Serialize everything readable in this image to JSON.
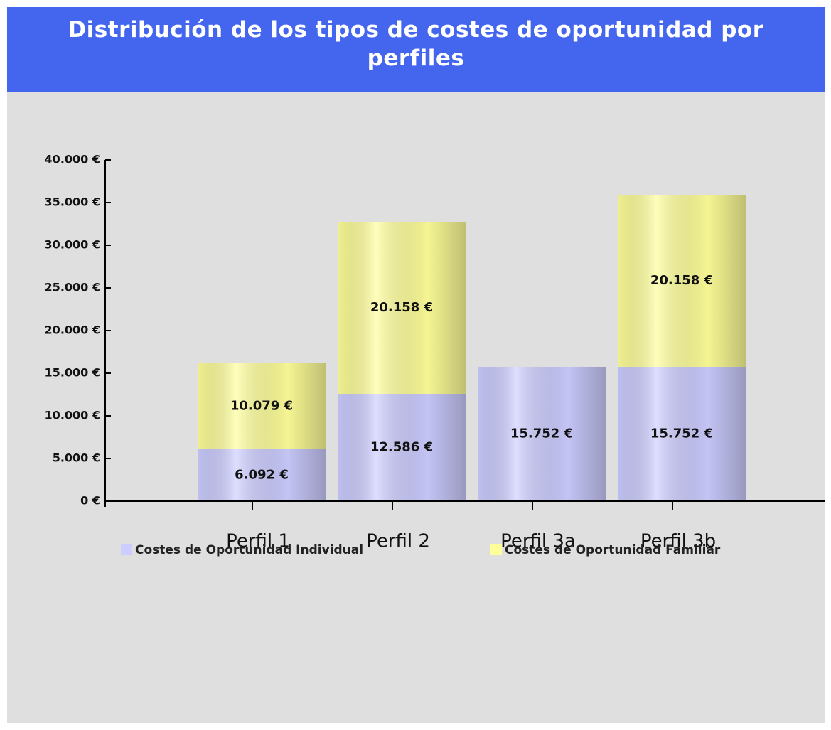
{
  "chart_data": {
    "type": "stacked_bar",
    "title": "Distribución de los tipos de costes de oportunidad por perfiles",
    "categories": [
      "Perfil 1",
      "Perfil 2",
      "Perfil 3a",
      "Perfil 3b"
    ],
    "series": [
      {
        "name": "Costes de Oportunidad Individual",
        "color": "#ccccff",
        "values": [
          6092,
          12586,
          15752,
          15752
        ],
        "value_labels": [
          "6.092 €",
          "12.586 €",
          "15.752 €",
          "15.752 €"
        ]
      },
      {
        "name": "Costes de Oportunidad Familiar",
        "color": "#ffff99",
        "values": [
          10079,
          20158,
          null,
          20158
        ],
        "value_labels": [
          "10.079 €",
          "20.158 €",
          null,
          "20.158 €"
        ]
      }
    ],
    "ylim": [
      0,
      40000
    ],
    "yticks": [
      {
        "value": 0,
        "label": "0 €"
      },
      {
        "value": 5000,
        "label": "5.000 €"
      },
      {
        "value": 10000,
        "label": "10.000 €"
      },
      {
        "value": 15000,
        "label": "15.000 €"
      },
      {
        "value": 20000,
        "label": "20.000 €"
      },
      {
        "value": 25000,
        "label": "25.000 €"
      },
      {
        "value": 30000,
        "label": "30.000 €"
      },
      {
        "value": 35000,
        "label": "35.000 €"
      },
      {
        "value": 40000,
        "label": "40.000 €"
      }
    ],
    "legend": "bottom"
  }
}
